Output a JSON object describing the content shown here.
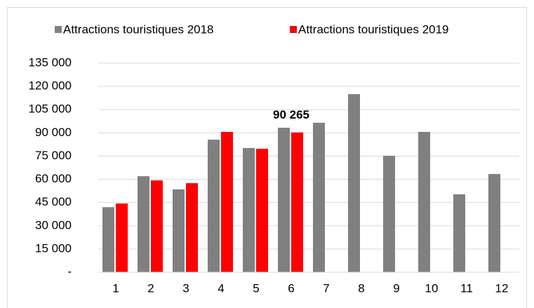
{
  "chart_data": {
    "type": "bar",
    "categories": [
      "1",
      "2",
      "3",
      "4",
      "5",
      "6",
      "7",
      "8",
      "9",
      "10",
      "11",
      "12"
    ],
    "series": [
      {
        "name": "Attractions touristiques 2018",
        "color": "#808080",
        "values": [
          42000,
          62000,
          53500,
          85600,
          80200,
          93300,
          96500,
          115000,
          75200,
          90600,
          50300,
          63400
        ]
      },
      {
        "name": "Attractions touristiques 2019",
        "color": "#ff0000",
        "values": [
          44400,
          59300,
          57500,
          90600,
          79700,
          90265,
          null,
          null,
          null,
          null,
          null,
          null
        ],
        "value_labels": [
          null,
          null,
          null,
          null,
          null,
          "90 265",
          null,
          null,
          null,
          null,
          null,
          null
        ]
      }
    ],
    "ylim": [
      0,
      135000
    ],
    "yticks": [
      {
        "value": 0,
        "label": "-"
      },
      {
        "value": 15000,
        "label": "15 000"
      },
      {
        "value": 30000,
        "label": "30 000"
      },
      {
        "value": 45000,
        "label": "45 000"
      },
      {
        "value": 60000,
        "label": "60 000"
      },
      {
        "value": 75000,
        "label": "75 000"
      },
      {
        "value": 90000,
        "label": "90 000"
      },
      {
        "value": 105000,
        "label": "105 000"
      },
      {
        "value": 120000,
        "label": "120 000"
      },
      {
        "value": 135000,
        "label": "135 000"
      }
    ],
    "grid": true,
    "legend": "top"
  }
}
